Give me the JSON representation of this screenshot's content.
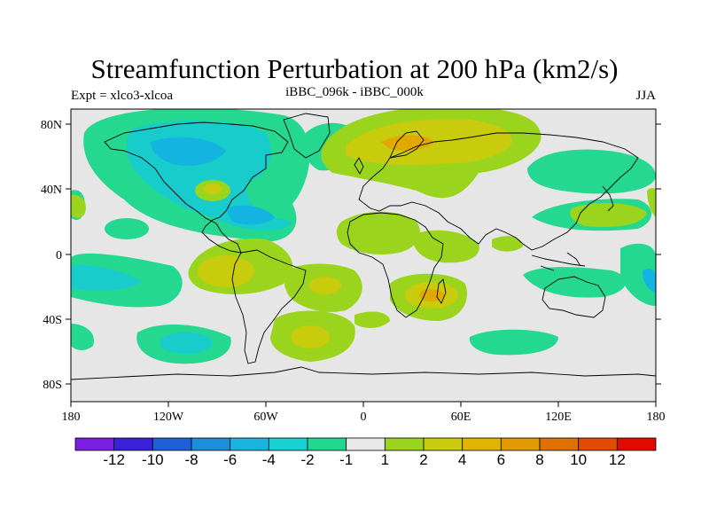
{
  "title": "Streamfunction Perturbation at 200 hPa (km2/s)",
  "left_label": "Expt = xlco3-xlcoa",
  "center_label": "iBBC_096k - iBBC_000k",
  "right_label": "JJA",
  "lat_labels": [
    "80N",
    "40N",
    "0",
    "40S",
    "80S"
  ],
  "lon_labels": [
    "180",
    "120W",
    "60W",
    "0",
    "60E",
    "120E",
    "180"
  ],
  "colorbar": {
    "colors": [
      "#7a1fe0",
      "#3a20d8",
      "#1f5fdc",
      "#1c8fdc",
      "#19b4e0",
      "#17d2d2",
      "#1ed890",
      "#e8e8e8",
      "#9ad41c",
      "#c8cc0c",
      "#e0b400",
      "#e09a00",
      "#e07000",
      "#e24a00",
      "#e00a00"
    ],
    "labels": [
      "-12",
      "-10",
      "-8",
      "-6",
      "-4",
      "-2",
      "-1",
      "1",
      "2",
      "4",
      "6",
      "8",
      "10",
      "12"
    ]
  },
  "colors": {
    "background": "#e6e6e6",
    "neg1": "#25d890",
    "neg2": "#18cccc",
    "neg3": "#14b4e0",
    "pos1": "#9ad41c",
    "pos2": "#c8cc0c",
    "pos3": "#e0a800"
  }
}
